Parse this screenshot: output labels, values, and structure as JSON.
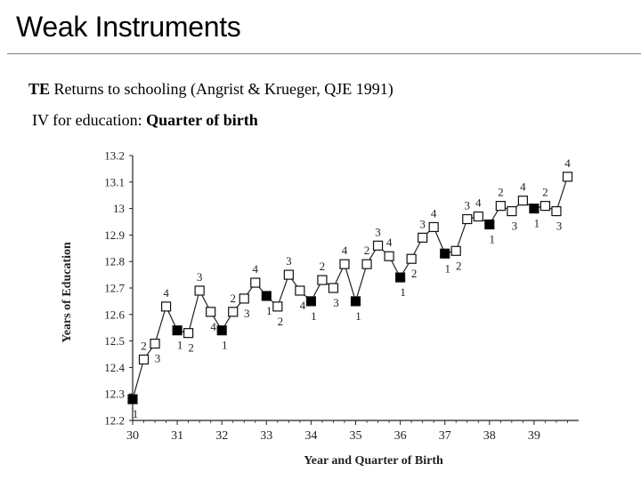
{
  "slide": {
    "title": "Weak Instruments",
    "line1_bold": "TE",
    "line1_rest": " Returns to schooling (Angrist & Krueger, QJE 1991)",
    "line2_plain": "IV for education: ",
    "line2_bold": "Quarter of birth"
  },
  "chart_data": {
    "type": "line",
    "title": "",
    "xlabel": "Year and Quarter of Birth",
    "ylabel": "Years of Education",
    "xlim": [
      30,
      40
    ],
    "ylim": [
      12.2,
      13.2
    ],
    "xticks": [
      30,
      31,
      32,
      33,
      34,
      35,
      36,
      37,
      38,
      39
    ],
    "yticks": [
      12.2,
      12.3,
      12.4,
      12.5,
      12.6,
      12.7,
      12.8,
      12.9,
      13.0,
      13.1,
      13.2
    ],
    "ytick_labels": [
      "12.2",
      "12.3",
      "12.4",
      "12.5",
      "12.6",
      "12.7",
      "12.8",
      "12.9",
      "13",
      "13.1",
      "13.2"
    ],
    "grid": false,
    "legend": "none",
    "marker_note": "Filled square = quarter 1; open square = quarters 2-4; each point labeled with its quarter",
    "points": [
      {
        "x": 30.0,
        "y": 12.28,
        "q": "1"
      },
      {
        "x": 30.25,
        "y": 12.43,
        "q": "2"
      },
      {
        "x": 30.5,
        "y": 12.49,
        "q": "3"
      },
      {
        "x": 30.75,
        "y": 12.63,
        "q": "4"
      },
      {
        "x": 31.0,
        "y": 12.54,
        "q": "1"
      },
      {
        "x": 31.25,
        "y": 12.53,
        "q": "2"
      },
      {
        "x": 31.5,
        "y": 12.69,
        "q": "3"
      },
      {
        "x": 31.75,
        "y": 12.61,
        "q": "4"
      },
      {
        "x": 32.0,
        "y": 12.54,
        "q": "1"
      },
      {
        "x": 32.25,
        "y": 12.61,
        "q": "2"
      },
      {
        "x": 32.5,
        "y": 12.66,
        "q": "3"
      },
      {
        "x": 32.75,
        "y": 12.72,
        "q": "4"
      },
      {
        "x": 33.0,
        "y": 12.67,
        "q": "1"
      },
      {
        "x": 33.25,
        "y": 12.63,
        "q": "2"
      },
      {
        "x": 33.5,
        "y": 12.75,
        "q": "3"
      },
      {
        "x": 33.75,
        "y": 12.69,
        "q": "4"
      },
      {
        "x": 34.0,
        "y": 12.65,
        "q": "1"
      },
      {
        "x": 34.25,
        "y": 12.73,
        "q": "2"
      },
      {
        "x": 34.5,
        "y": 12.7,
        "q": "3"
      },
      {
        "x": 34.75,
        "y": 12.79,
        "q": "4"
      },
      {
        "x": 35.0,
        "y": 12.65,
        "q": "1"
      },
      {
        "x": 35.25,
        "y": 12.79,
        "q": "2"
      },
      {
        "x": 35.5,
        "y": 12.86,
        "q": "3"
      },
      {
        "x": 35.75,
        "y": 12.82,
        "q": "4"
      },
      {
        "x": 36.0,
        "y": 12.74,
        "q": "1"
      },
      {
        "x": 36.25,
        "y": 12.81,
        "q": "2"
      },
      {
        "x": 36.5,
        "y": 12.89,
        "q": "3"
      },
      {
        "x": 36.75,
        "y": 12.93,
        "q": "4"
      },
      {
        "x": 37.0,
        "y": 12.83,
        "q": "1"
      },
      {
        "x": 37.25,
        "y": 12.84,
        "q": "2"
      },
      {
        "x": 37.5,
        "y": 12.96,
        "q": "3"
      },
      {
        "x": 37.75,
        "y": 12.97,
        "q": "4"
      },
      {
        "x": 38.0,
        "y": 12.94,
        "q": "1"
      },
      {
        "x": 38.25,
        "y": 13.01,
        "q": "2"
      },
      {
        "x": 38.5,
        "y": 12.99,
        "q": "3"
      },
      {
        "x": 38.75,
        "y": 13.03,
        "q": "4"
      },
      {
        "x": 39.0,
        "y": 13.0,
        "q": "1"
      },
      {
        "x": 39.25,
        "y": 13.01,
        "q": "2"
      },
      {
        "x": 39.5,
        "y": 12.99,
        "q": "3"
      },
      {
        "x": 39.75,
        "y": 13.12,
        "q": "4"
      }
    ]
  }
}
